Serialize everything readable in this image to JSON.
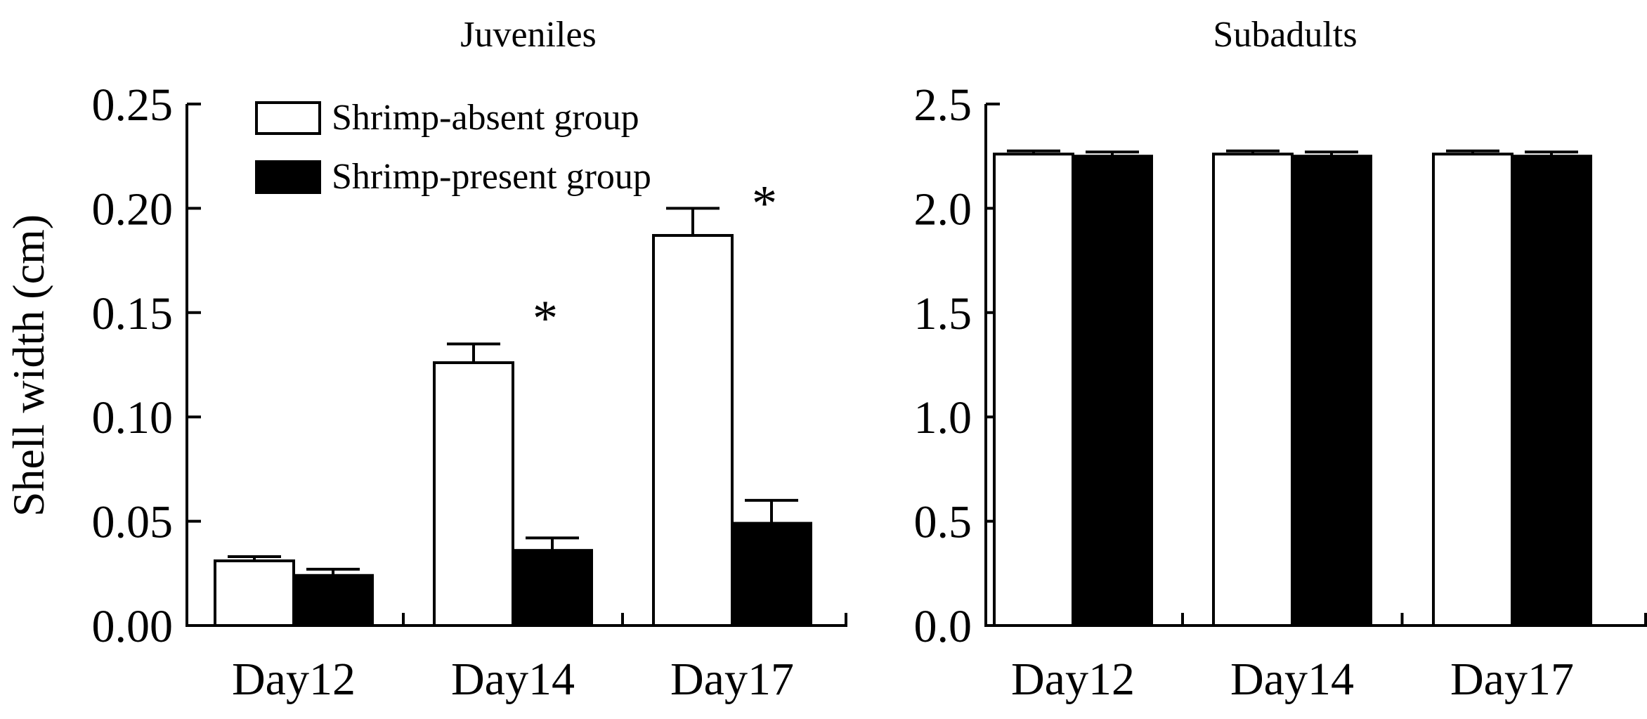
{
  "chart_data": [
    {
      "type": "bar",
      "title": "Juveniles",
      "xlabel": "",
      "ylabel": "Shell width (cm)",
      "categories": [
        "Day12",
        "Day14",
        "Day17"
      ],
      "ylim": [
        0,
        0.25
      ],
      "yticks": [
        "0.00",
        "0.05",
        "0.10",
        "0.15",
        "0.20",
        "0.25"
      ],
      "legend_position": "top-left",
      "series": [
        {
          "name": "Shrimp-absent group",
          "fill": "#ffffff",
          "values": [
            0.031,
            0.126,
            0.187
          ],
          "errors": [
            0.002,
            0.009,
            0.013
          ]
        },
        {
          "name": "Shrimp-present group",
          "fill": "#000000",
          "values": [
            0.024,
            0.036,
            0.049
          ],
          "errors": [
            0.003,
            0.006,
            0.011
          ]
        }
      ],
      "annotations": [
        {
          "text": "*",
          "category": "Day14",
          "above_value": 0.15
        },
        {
          "text": "*",
          "category": "Day17",
          "above_value": 0.205
        }
      ]
    },
    {
      "type": "bar",
      "title": "Subadults",
      "xlabel": "",
      "ylabel": "",
      "categories": [
        "Day12",
        "Day14",
        "Day17"
      ],
      "ylim": [
        0,
        2.5
      ],
      "yticks": [
        "0.0",
        "0.5",
        "1.0",
        "1.5",
        "2.0",
        "2.5"
      ],
      "series": [
        {
          "name": "Shrimp-absent group",
          "fill": "#ffffff",
          "values": [
            2.26,
            2.26,
            2.26
          ],
          "errors": [
            0.015,
            0.015,
            0.015
          ]
        },
        {
          "name": "Shrimp-present group",
          "fill": "#000000",
          "values": [
            2.25,
            2.25,
            2.25
          ],
          "errors": [
            0.02,
            0.02,
            0.02
          ]
        }
      ],
      "annotations": []
    }
  ]
}
